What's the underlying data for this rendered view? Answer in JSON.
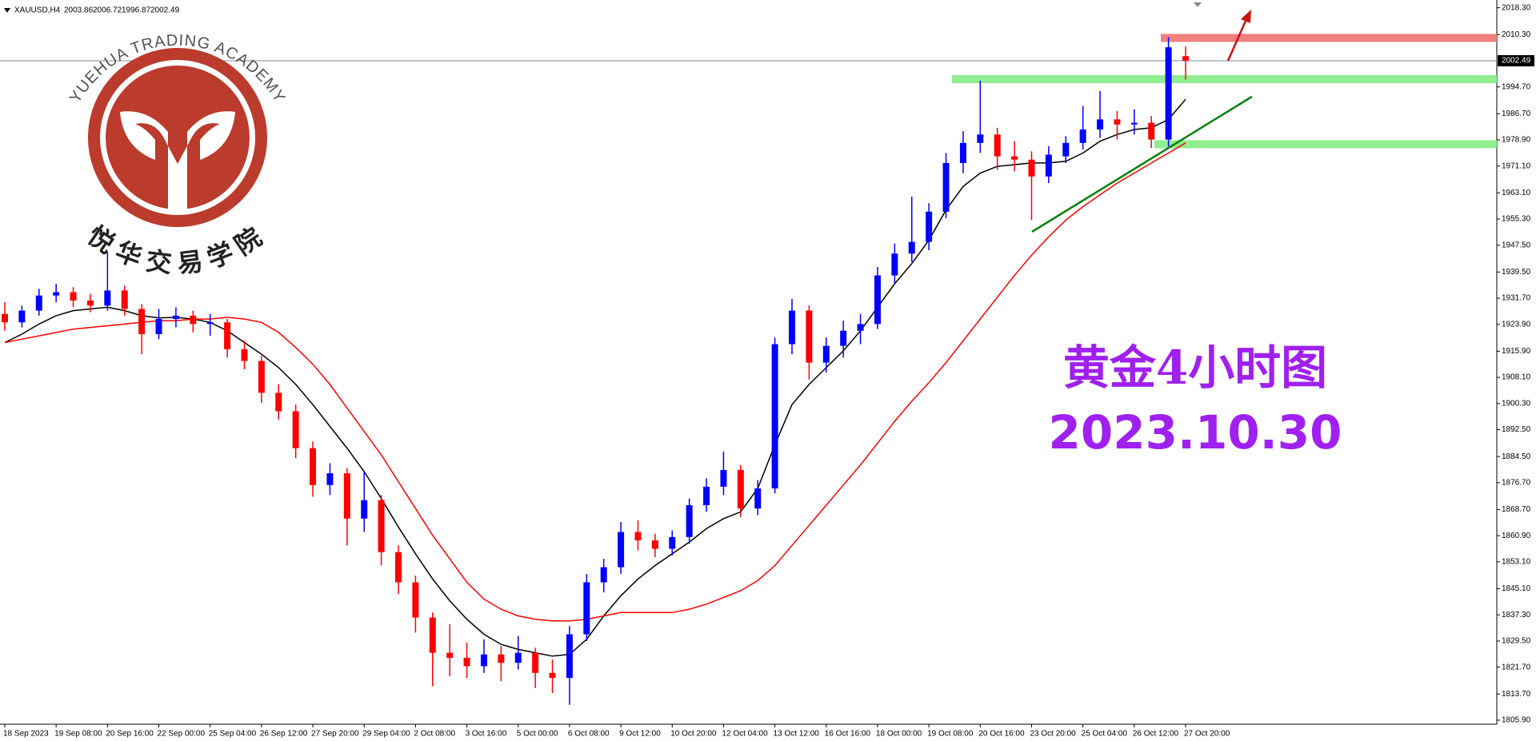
{
  "chart_data": {
    "type": "candlestick",
    "symbol": "XAUUSD,H4",
    "logo_text": "YUEHUA TRADING ACADEMY",
    "logo_cn": "悦华交易学院",
    "annotation_title": "黄金4小时图",
    "annotation_date": "2023.10.30",
    "up_color": "#0000ff",
    "down_color": "#ff0000",
    "categories": [
      "18 Sep 2023",
      null,
      null,
      "19 Sep 08:00",
      null,
      null,
      "20 Sep 16:00",
      null,
      null,
      "22 Sep 00:00",
      null,
      null,
      "25 Sep 04:00",
      null,
      null,
      "26 Sep 12:00",
      null,
      null,
      "27 Sep 20:00",
      null,
      null,
      "29 Sep 04:00",
      null,
      null,
      "2 Oct 08:00",
      null,
      null,
      "3 Oct 16:00",
      null,
      null,
      "5 Oct 00:00",
      null,
      null,
      "6 Oct 08:00",
      null,
      null,
      "9 Oct 12:00",
      null,
      null,
      "10 Oct 20:00",
      null,
      null,
      "12 Oct 04:00",
      null,
      null,
      "13 Oct 12:00",
      null,
      null,
      "16 Oct 16:00",
      null,
      null,
      "18 Oct 00:00",
      null,
      null,
      "19 Oct 08:00",
      null,
      null,
      "20 Oct 16:00",
      null,
      null,
      "23 Oct 20:00",
      null,
      null,
      "25 Oct 04:00",
      null,
      null,
      "26 Oct 12:00",
      null,
      null,
      "27 Oct 20:00"
    ],
    "ohlc": [
      [
        1927.0,
        1930.5,
        1922.0,
        1924.5
      ],
      [
        1924.5,
        1929.5,
        1923.0,
        1928.0
      ],
      [
        1928.0,
        1934.5,
        1926.5,
        1932.5
      ],
      [
        1932.5,
        1936.0,
        1930.5,
        1933.5
      ],
      [
        1933.5,
        1935.0,
        1929.0,
        1931.0
      ],
      [
        1931.0,
        1933.0,
        1927.5,
        1929.5
      ],
      [
        1929.5,
        1945.5,
        1928.0,
        1934.0
      ],
      [
        1934.0,
        1935.5,
        1926.5,
        1928.5
      ],
      [
        1928.5,
        1930.0,
        1915.0,
        1921.0
      ],
      [
        1921.0,
        1928.5,
        1919.5,
        1925.5
      ],
      [
        1925.5,
        1929.0,
        1923.0,
        1926.5
      ],
      [
        1926.5,
        1928.0,
        1921.5,
        1924.0
      ],
      [
        1924.0,
        1927.0,
        1920.5,
        1924.5
      ],
      [
        1924.5,
        1925.5,
        1914.0,
        1916.5
      ],
      [
        1916.5,
        1919.0,
        1910.5,
        1913.0
      ],
      [
        1913.0,
        1914.5,
        1900.5,
        1903.5
      ],
      [
        1903.5,
        1906.0,
        1895.5,
        1898.0
      ],
      [
        1898.0,
        1900.0,
        1884.0,
        1887.0
      ],
      [
        1887.0,
        1889.0,
        1872.5,
        1876.0
      ],
      [
        1876.0,
        1882.5,
        1873.0,
        1879.5
      ],
      [
        1879.5,
        1881.0,
        1858.0,
        1866.0
      ],
      [
        1866.0,
        1880.0,
        1862.0,
        1871.5
      ],
      [
        1871.5,
        1873.0,
        1852.0,
        1856.0
      ],
      [
        1856.0,
        1858.0,
        1843.5,
        1847.0
      ],
      [
        1847.0,
        1849.0,
        1832.0,
        1836.5
      ],
      [
        1836.5,
        1838.0,
        1816.0,
        1826.0
      ],
      [
        1826.0,
        1834.5,
        1819.0,
        1824.5
      ],
      [
        1824.5,
        1829.0,
        1818.5,
        1822.0
      ],
      [
        1822.0,
        1830.0,
        1820.0,
        1825.5
      ],
      [
        1825.5,
        1828.0,
        1817.5,
        1823.0
      ],
      [
        1823.0,
        1831.0,
        1821.0,
        1826.0
      ],
      [
        1826.0,
        1827.5,
        1815.5,
        1820.0
      ],
      [
        1820.0,
        1824.0,
        1814.0,
        1818.5
      ],
      [
        1818.5,
        1834.0,
        1810.5,
        1831.5
      ],
      [
        1831.5,
        1849.5,
        1829.5,
        1847.0
      ],
      [
        1847.0,
        1854.0,
        1844.0,
        1851.5
      ],
      [
        1851.5,
        1865.0,
        1849.5,
        1862.0
      ],
      [
        1862.0,
        1865.5,
        1856.5,
        1859.5
      ],
      [
        1859.5,
        1861.5,
        1854.5,
        1857.0
      ],
      [
        1857.0,
        1862.5,
        1855.0,
        1860.5
      ],
      [
        1860.5,
        1872.0,
        1858.5,
        1870.0
      ],
      [
        1870.0,
        1878.0,
        1868.0,
        1875.5
      ],
      [
        1875.5,
        1886.0,
        1873.0,
        1880.5
      ],
      [
        1880.5,
        1882.0,
        1866.5,
        1869.0
      ],
      [
        1869.0,
        1877.5,
        1867.0,
        1875.0
      ],
      [
        1875.0,
        1920.0,
        1873.5,
        1918.0
      ],
      [
        1918.0,
        1931.5,
        1915.0,
        1928.0
      ],
      [
        1928.0,
        1929.5,
        1907.5,
        1912.5
      ],
      [
        1912.5,
        1920.0,
        1909.5,
        1917.5
      ],
      [
        1917.5,
        1925.0,
        1914.0,
        1922.0
      ],
      [
        1922.0,
        1927.0,
        1918.0,
        1924.0
      ],
      [
        1924.0,
        1941.0,
        1922.5,
        1938.5
      ],
      [
        1938.5,
        1948.0,
        1936.0,
        1945.0
      ],
      [
        1945.0,
        1962.0,
        1942.5,
        1948.5
      ],
      [
        1948.5,
        1960.0,
        1946.0,
        1957.5
      ],
      [
        1957.5,
        1975.0,
        1955.5,
        1972.0
      ],
      [
        1972.0,
        1981.5,
        1969.0,
        1978.0
      ],
      [
        1978.0,
        1996.5,
        1975.0,
        1980.5
      ],
      [
        1980.5,
        1982.5,
        1970.0,
        1974.0
      ],
      [
        1974.0,
        1978.5,
        1969.5,
        1973.0
      ],
      [
        1973.0,
        1975.5,
        1955.0,
        1968.0
      ],
      [
        1968.0,
        1977.0,
        1966.0,
        1974.5
      ],
      [
        1974.0,
        1980.0,
        1972.0,
        1978.0
      ],
      [
        1978.0,
        1989.0,
        1976.0,
        1982.0
      ],
      [
        1982.0,
        1993.5,
        1979.5,
        1985.0
      ],
      [
        1985.0,
        1987.5,
        1979.0,
        1983.5
      ],
      [
        1983.5,
        1988.0,
        1980.5,
        1984.0
      ],
      [
        1984.0,
        1986.0,
        1976.5,
        1979.0
      ],
      [
        1979.0,
        2009.5,
        1977.0,
        2006.5
      ],
      [
        2003.86,
        2006.72,
        1996.87,
        2002.49
      ]
    ],
    "moving_averages": [
      {
        "color": "#000000",
        "values": [
          1918.5,
          1921,
          1924,
          1926.5,
          1928,
          1928.5,
          1929,
          1928,
          1926.5,
          1925.8,
          1926,
          1925.5,
          1924.5,
          1922,
          1918.5,
          1915,
          1911,
          1906,
          1900,
          1893.5,
          1887,
          1880,
          1872,
          1863.5,
          1855.5,
          1848,
          1841.5,
          1836,
          1831.5,
          1828.5,
          1827,
          1826,
          1825,
          1825.5,
          1830,
          1837,
          1843,
          1848,
          1852,
          1855.5,
          1859,
          1863,
          1866,
          1868,
          1875,
          1888,
          1900,
          1906,
          1911,
          1916,
          1922,
          1929,
          1936,
          1942,
          1949,
          1958,
          1965,
          1969,
          1971,
          1971.5,
          1972,
          1972,
          1972.5,
          1975,
          1978.5,
          1980.5,
          1982,
          1982.5,
          1985,
          1991
        ]
      },
      {
        "color": "#ff0000",
        "values": [
          1918.5,
          1919.5,
          1920.5,
          1921.5,
          1922.5,
          1923,
          1923.5,
          1924,
          1924.5,
          1925,
          1925,
          1925.5,
          1925.5,
          1926,
          1925.5,
          1924.5,
          1921.5,
          1917,
          1912,
          1906,
          1899,
          1892,
          1885,
          1877,
          1869,
          1861,
          1854,
          1847,
          1842,
          1839,
          1837,
          1836,
          1835.5,
          1835.5,
          1836,
          1837,
          1838,
          1838,
          1838,
          1838,
          1839,
          1840.5,
          1842.5,
          1844.5,
          1847.5,
          1852,
          1858,
          1864,
          1870,
          1876,
          1882,
          1888.5,
          1895,
          1901,
          1906.5,
          1912.5,
          1919,
          1925.5,
          1932,
          1938.5,
          1944.5,
          1950,
          1955,
          1959,
          1962.5,
          1966,
          1969,
          1972,
          1975,
          1978
        ]
      }
    ],
    "zones": [
      {
        "value": 2009.3,
        "color": "#f08080"
      },
      {
        "value": 1997.0,
        "color": "#90ee90"
      },
      {
        "value": 1977.6,
        "color": "#90ee90"
      }
    ],
    "trendline": {
      "values": [
        1951.5,
        1991.8
      ],
      "color": "#008000"
    },
    "ylim": [
      1804.7,
      2020.6
    ],
    "yticks": [
      {
        "value": 2018.3,
        "label": "2018.30"
      },
      {
        "value": 2010.3,
        "label": "2010.30"
      },
      {
        "value": 1994.7,
        "label": "1994.70"
      },
      {
        "value": 1986.7,
        "label": "1986.70"
      },
      {
        "value": 1978.9,
        "label": "1978.90"
      },
      {
        "value": 1971.1,
        "label": "1971.10"
      },
      {
        "value": 1963.1,
        "label": "1963.10"
      },
      {
        "value": 1955.3,
        "label": "1955.30"
      },
      {
        "value": 1947.5,
        "label": "1947.50"
      },
      {
        "value": 1939.5,
        "label": "1939.50"
      },
      {
        "value": 1931.7,
        "label": "1931.70"
      },
      {
        "value": 1923.9,
        "label": "1923.90"
      },
      {
        "value": 1915.9,
        "label": "1915.90"
      },
      {
        "value": 1908.1,
        "label": "1908.10"
      },
      {
        "value": 1900.3,
        "label": "1900.30"
      },
      {
        "value": 1892.5,
        "label": "1892.50"
      },
      {
        "value": 1884.5,
        "label": "1884.50"
      },
      {
        "value": 1876.7,
        "label": "1876.70"
      },
      {
        "value": 1868.7,
        "label": "1868.70"
      },
      {
        "value": 1860.9,
        "label": "1860.90"
      },
      {
        "value": 1853.1,
        "label": "1853.10"
      },
      {
        "value": 1845.1,
        "label": "1845.10"
      },
      {
        "value": 1837.3,
        "label": "1837.30"
      },
      {
        "value": 1829.5,
        "label": "1829.50"
      },
      {
        "value": 1821.7,
        "label": "1821.70"
      },
      {
        "value": 1813.7,
        "label": "1813.70"
      },
      {
        "value": 1805.9,
        "label": "1805.90"
      }
    ]
  }
}
